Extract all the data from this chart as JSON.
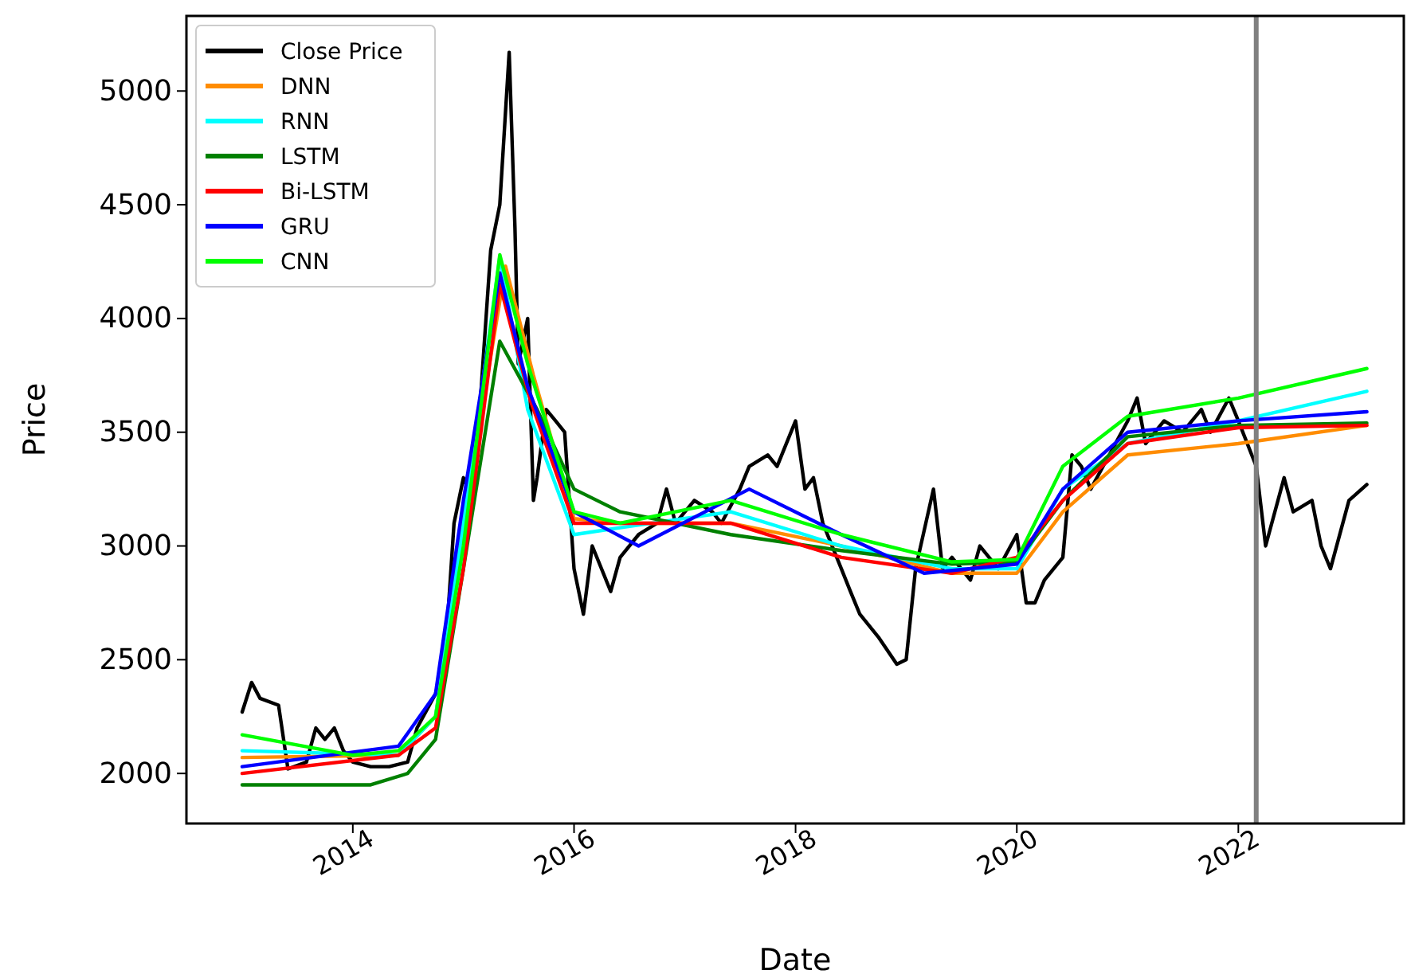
{
  "chart_data": {
    "type": "line",
    "xlabel": "Date",
    "ylabel": "Price",
    "xlim": [
      "2012-07",
      "2023-07"
    ],
    "xticks": [
      "2014",
      "2016",
      "2018",
      "2020",
      "2022"
    ],
    "ylim": [
      1780,
      5330
    ],
    "yticks": [
      2000,
      2500,
      3000,
      3500,
      4000,
      4500,
      5000
    ],
    "legend": "top left",
    "grid": false,
    "line_style": "solid",
    "marker": "none",
    "ref_lines": [
      {
        "axis": "x",
        "value": "2022-03",
        "color": "#808080"
      }
    ],
    "series": [
      {
        "name": "Close Price",
        "color": "#000000",
        "x": [
          "2013-01",
          "2013-02",
          "2013-03",
          "2013-05",
          "2013-06",
          "2013-08",
          "2013-09",
          "2013-10",
          "2013-11",
          "2013-12",
          "2014-01",
          "2014-03",
          "2014-05",
          "2014-07",
          "2014-08",
          "2014-10",
          "2014-11",
          "2014-12",
          "2015-01",
          "2015-02",
          "2015-03",
          "2015-04",
          "2015-05",
          "2015-06",
          "2015-06-20",
          "2015-07",
          "2015-08",
          "2015-08-20",
          "2015-09",
          "2015-10",
          "2015-11",
          "2015-12",
          "2016-01",
          "2016-02",
          "2016-03",
          "2016-05",
          "2016-06",
          "2016-08",
          "2016-10",
          "2016-11",
          "2016-12",
          "2017-02",
          "2017-04",
          "2017-05",
          "2017-07",
          "2017-08",
          "2017-10",
          "2017-11",
          "2018-01",
          "2018-02",
          "2018-03",
          "2018-04",
          "2018-06",
          "2018-07",
          "2018-08",
          "2018-10",
          "2018-12",
          "2019-01",
          "2019-02",
          "2019-04",
          "2019-05",
          "2019-06",
          "2019-08",
          "2019-09",
          "2019-11",
          "2020-01",
          "2020-02",
          "2020-03",
          "2020-04",
          "2020-06",
          "2020-07",
          "2020-08",
          "2020-09",
          "2020-11",
          "2021-01",
          "2021-02",
          "2021-03",
          "2021-05",
          "2021-07",
          "2021-09",
          "2021-10",
          "2021-12",
          "2022-01",
          "2022-03",
          "2022-04",
          "2022-06",
          "2022-07",
          "2022-09",
          "2022-10",
          "2022-11",
          "2023-01",
          "2023-03"
        ],
        "values": [
          2270,
          2400,
          2330,
          2300,
          2020,
          2050,
          2200,
          2150,
          2200,
          2100,
          2050,
          2030,
          2030,
          2050,
          2200,
          2350,
          2500,
          3100,
          3300,
          3200,
          3700,
          4300,
          4500,
          5170,
          4400,
          3800,
          4000,
          3200,
          3300,
          3600,
          3550,
          3500,
          2900,
          2700,
          3000,
          2800,
          2950,
          3050,
          3100,
          3250,
          3100,
          3200,
          3150,
          3100,
          3250,
          3350,
          3400,
          3350,
          3550,
          3250,
          3300,
          3100,
          2900,
          2800,
          2700,
          2600,
          2480,
          2500,
          2900,
          3250,
          2900,
          2950,
          2850,
          3000,
          2900,
          3050,
          2750,
          2750,
          2850,
          2950,
          3400,
          3350,
          3250,
          3400,
          3550,
          3650,
          3450,
          3550,
          3500,
          3600,
          3500,
          3650,
          3550,
          3350,
          3000,
          3300,
          3150,
          3200,
          3000,
          2900,
          3200,
          3270
        ]
      },
      {
        "name": "DNN",
        "color": "#ff8c00",
        "x": [
          "2013-01",
          "2014-06",
          "2014-10",
          "2015-01",
          "2015-05-20",
          "2015-08-20",
          "2016-01",
          "2016-06",
          "2017-06",
          "2018-06",
          "2019-06",
          "2020-01",
          "2020-06",
          "2021-01",
          "2022-01",
          "2023-03"
        ],
        "values": [
          2070,
          2080,
          2250,
          3100,
          4230,
          3750,
          3120,
          3100,
          3100,
          3000,
          2880,
          2880,
          3150,
          3400,
          3450,
          3530
        ]
      },
      {
        "name": "RNN",
        "color": "#00ffff",
        "x": [
          "2013-01",
          "2014-06",
          "2014-10",
          "2015-01",
          "2015-05",
          "2015-08",
          "2016-01",
          "2016-06",
          "2017-06",
          "2018-06",
          "2019-06",
          "2020-01",
          "2020-06",
          "2021-01",
          "2022-01",
          "2023-03"
        ],
        "values": [
          2100,
          2080,
          2250,
          3100,
          4270,
          3600,
          3050,
          3080,
          3150,
          3000,
          2900,
          2900,
          3250,
          3450,
          3550,
          3680
        ]
      },
      {
        "name": "LSTM",
        "color": "#008000",
        "x": [
          "2013-01",
          "2014-03",
          "2014-07",
          "2014-10",
          "2015-01",
          "2015-05",
          "2015-09",
          "2016-01",
          "2016-06",
          "2017-06",
          "2018-06",
          "2019-06",
          "2020-01",
          "2020-06",
          "2021-01",
          "2022-01",
          "2023-03"
        ],
        "values": [
          1950,
          1950,
          2000,
          2150,
          2900,
          3900,
          3600,
          3250,
          3150,
          3050,
          2980,
          2920,
          2930,
          3200,
          3480,
          3530,
          3540
        ]
      },
      {
        "name": "Bi-LSTM",
        "color": "#ff0000",
        "x": [
          "2013-01",
          "2014-06",
          "2014-10",
          "2015-01",
          "2015-05",
          "2015-08-10",
          "2016-01",
          "2016-06",
          "2017-06",
          "2018-06",
          "2019-06",
          "2020-01",
          "2020-06",
          "2021-01",
          "2022-01",
          "2023-03"
        ],
        "values": [
          2000,
          2080,
          2200,
          2900,
          4150,
          3640,
          3100,
          3100,
          3100,
          2950,
          2880,
          2950,
          3200,
          3450,
          3520,
          3530
        ]
      },
      {
        "name": "GRU",
        "color": "#0000ff",
        "x": [
          "2013-01",
          "2014-06",
          "2014-10",
          "2015-01",
          "2015-05",
          "2015-08",
          "2016-01",
          "2016-08",
          "2017-08",
          "2018-06",
          "2019-03",
          "2020-01",
          "2020-06",
          "2021-01",
          "2022-01",
          "2023-03"
        ],
        "values": [
          2030,
          2120,
          2350,
          3200,
          4200,
          3700,
          3150,
          3000,
          3250,
          3050,
          2880,
          2920,
          3250,
          3500,
          3550,
          3590
        ]
      },
      {
        "name": "CNN",
        "color": "#00ff00",
        "x": [
          "2013-01",
          "2014-01",
          "2014-06",
          "2014-10",
          "2015-01",
          "2015-05",
          "2015-08",
          "2016-01",
          "2016-06",
          "2017-06",
          "2018-06",
          "2019-06",
          "2020-01",
          "2020-06",
          "2021-01",
          "2022-01",
          "2023-03"
        ],
        "values": [
          2170,
          2080,
          2100,
          2250,
          3000,
          4280,
          3800,
          3150,
          3100,
          3200,
          3050,
          2930,
          2940,
          3350,
          3570,
          3650,
          3780
        ]
      }
    ]
  }
}
